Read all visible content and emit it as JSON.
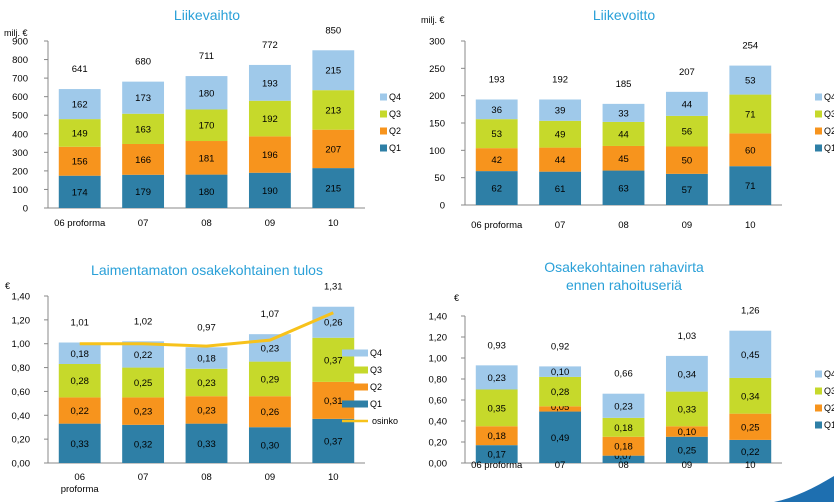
{
  "colors": {
    "Q1": "#2e7fa6",
    "Q2": "#f7941d",
    "Q3": "#c6d92b",
    "Q4": "#9fc9ea",
    "osinko": "#f7c21b",
    "title": "#2aa0d8",
    "corner": "#1e6fb0"
  },
  "chart_data": [
    {
      "type": "bar",
      "stacked": true,
      "title": "Liikevaihto",
      "unit_label": "milj. €",
      "categories": [
        "06 proforma",
        "07",
        "08",
        "09",
        "10"
      ],
      "ylim": [
        0,
        900
      ],
      "yticks": [
        "0",
        "100",
        "200",
        "300",
        "400",
        "500",
        "600",
        "700",
        "800",
        "900"
      ],
      "series": [
        {
          "name": "Q1",
          "values": [
            174,
            179,
            180,
            190,
            215
          ],
          "labels": [
            "174",
            "179",
            "180",
            "190",
            "215"
          ]
        },
        {
          "name": "Q2",
          "values": [
            156,
            166,
            181,
            196,
            207
          ],
          "labels": [
            "156",
            "166",
            "181",
            "196",
            "207"
          ]
        },
        {
          "name": "Q3",
          "values": [
            149,
            163,
            170,
            192,
            213
          ],
          "labels": [
            "149",
            "163",
            "170",
            "192",
            "213"
          ]
        },
        {
          "name": "Q4",
          "values": [
            162,
            173,
            180,
            193,
            215
          ],
          "labels": [
            "162",
            "173",
            "180",
            "193",
            "215"
          ]
        }
      ],
      "totals": [
        "641",
        "680",
        "711",
        "772",
        "850"
      ],
      "legend_position": "right",
      "legend": [
        "Q4",
        "Q3",
        "Q2",
        "Q1"
      ]
    },
    {
      "type": "bar",
      "stacked": true,
      "title": "Liikevoitto",
      "unit_label": "milj. €",
      "categories": [
        "06 proforma",
        "07",
        "08",
        "09",
        "10"
      ],
      "ylim": [
        0,
        300
      ],
      "yticks": [
        "0",
        "50",
        "100",
        "150",
        "200",
        "250",
        "300"
      ],
      "series": [
        {
          "name": "Q1",
          "values": [
            62,
            61,
            63,
            57,
            71
          ],
          "labels": [
            "62",
            "61",
            "63",
            "57",
            "71"
          ]
        },
        {
          "name": "Q2",
          "values": [
            42,
            44,
            45,
            50,
            60
          ],
          "labels": [
            "42",
            "44",
            "45",
            "50",
            "60"
          ]
        },
        {
          "name": "Q3",
          "values": [
            53,
            49,
            44,
            56,
            71
          ],
          "labels": [
            "53",
            "49",
            "44",
            "56",
            "71"
          ]
        },
        {
          "name": "Q4",
          "values": [
            36,
            39,
            33,
            44,
            53
          ],
          "labels": [
            "36",
            "39",
            "33",
            "44",
            "53"
          ]
        }
      ],
      "totals": [
        "193",
        "192",
        "185",
        "207",
        "254"
      ],
      "legend_position": "right",
      "legend": [
        "Q4",
        "Q3",
        "Q2",
        "Q1"
      ]
    },
    {
      "type": "bar",
      "stacked": true,
      "title": "Laimentamaton osakekohtainen tulos",
      "unit_label": "€",
      "categories": [
        "06\nproforma",
        "07",
        "08",
        "09",
        "10"
      ],
      "ylim": [
        0,
        1.4
      ],
      "yticks": [
        "0,00",
        "0,20",
        "0,40",
        "0,60",
        "0,80",
        "1,00",
        "1,20",
        "1,40"
      ],
      "series": [
        {
          "name": "Q1",
          "values": [
            0.33,
            0.32,
            0.33,
            0.3,
            0.37
          ],
          "labels": [
            "0,33",
            "0,32",
            "0,33",
            "0,30",
            "0,37"
          ]
        },
        {
          "name": "Q2",
          "values": [
            0.22,
            0.23,
            0.23,
            0.26,
            0.31
          ],
          "labels": [
            "0,22",
            "0,23",
            "0,23",
            "0,26",
            "0,31"
          ]
        },
        {
          "name": "Q3",
          "values": [
            0.28,
            0.25,
            0.23,
            0.29,
            0.37
          ],
          "labels": [
            "0,28",
            "0,25",
            "0,23",
            "0,29",
            "0,37"
          ]
        },
        {
          "name": "Q4",
          "values": [
            0.18,
            0.22,
            0.18,
            0.23,
            0.26
          ],
          "labels": [
            "0,18",
            "0,22",
            "0,18",
            "0,23",
            "0,26"
          ]
        }
      ],
      "totals": [
        "1,01",
        "1,02",
        "0,97",
        "1,07",
        "1,31"
      ],
      "line": {
        "name": "osinko",
        "values": [
          1.0,
          1.0,
          0.98,
          1.03,
          1.26
        ]
      },
      "legend_position": "right",
      "legend": [
        "Q4",
        "Q3",
        "Q2",
        "Q1",
        "osinko"
      ]
    },
    {
      "type": "bar",
      "stacked": true,
      "title": "Osakekohtainen rahavirta\nennen rahoituseriä",
      "unit_label": "€",
      "categories": [
        "06 proforma",
        "07",
        "08",
        "09",
        "10"
      ],
      "ylim": [
        0,
        1.4
      ],
      "yticks": [
        "0,00",
        "0,20",
        "0,40",
        "0,60",
        "0,80",
        "1,00",
        "1,20",
        "1,40"
      ],
      "series": [
        {
          "name": "Q1",
          "values": [
            0.17,
            0.49,
            0.07,
            0.25,
            0.22
          ],
          "labels": [
            "0,17",
            "0,49",
            "0,07",
            "0,25",
            "0,22"
          ]
        },
        {
          "name": "Q2",
          "values": [
            0.18,
            0.05,
            0.18,
            0.1,
            0.25
          ],
          "labels": [
            "0,18",
            "0,05",
            "0,18",
            "0,10",
            "0,25"
          ]
        },
        {
          "name": "Q3",
          "values": [
            0.35,
            0.28,
            0.18,
            0.33,
            0.34
          ],
          "labels": [
            "0,35",
            "0,28",
            "0,18",
            "0,33",
            "0,34"
          ]
        },
        {
          "name": "Q4",
          "values": [
            0.23,
            0.1,
            0.23,
            0.34,
            0.45
          ],
          "labels": [
            "0,23",
            "0,10",
            "0,23",
            "0,34",
            "0,45"
          ]
        }
      ],
      "totals": [
        "0,93",
        "0,92",
        "0,66",
        "1,03",
        "1,26"
      ],
      "legend_position": "right",
      "legend": [
        "Q4",
        "Q3",
        "Q2",
        "Q1"
      ]
    }
  ]
}
